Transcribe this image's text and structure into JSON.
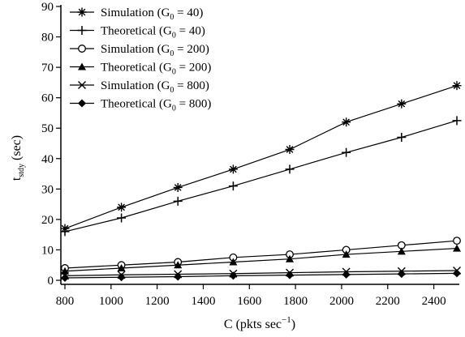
{
  "chart_data": {
    "type": "line",
    "title": "",
    "xlabel": "C (pkts sec",
    "xlabel_sup": "−1",
    "xlabel_close": ")",
    "ylabel": "t",
    "ylabel_sub": "stdy",
    "ylabel_unit": " (sec)",
    "xlim": [
      800,
      2500
    ],
    "ylim": [
      0,
      90
    ],
    "x_ticks": [
      800,
      1000,
      1200,
      1400,
      1600,
      1800,
      2000,
      2200,
      2400
    ],
    "y_ticks": [
      0,
      10,
      20,
      30,
      40,
      50,
      60,
      70,
      80,
      90
    ],
    "x": [
      800,
      1045,
      1290,
      1530,
      1775,
      2020,
      2260,
      2500
    ],
    "grid": false,
    "legend_position": "top-left",
    "series": [
      {
        "name": "Simulation (G",
        "g": "0",
        "eq": " = 40)",
        "marker": "asterisk",
        "values": [
          17,
          24,
          30.5,
          36.5,
          43,
          52,
          58,
          64
        ]
      },
      {
        "name": "Theoretical (G",
        "g": "0",
        "eq": " = 40)",
        "marker": "plus",
        "values": [
          16,
          20.5,
          26,
          31,
          36.5,
          42,
          47,
          52.5
        ]
      },
      {
        "name": "Simulation (G",
        "g": "0",
        "eq": " = 200)",
        "marker": "circle-open",
        "values": [
          4,
          5,
          6,
          7.5,
          8.5,
          10,
          11.5,
          13
        ]
      },
      {
        "name": "Theoretical (G",
        "g": "0",
        "eq": " = 200)",
        "marker": "triangle-filled",
        "values": [
          3,
          4,
          5,
          6,
          7,
          8.5,
          9.5,
          10.5
        ]
      },
      {
        "name": "Simulation (G",
        "g": "0",
        "eq": " = 800)",
        "marker": "cross",
        "values": [
          1.5,
          1.8,
          2,
          2.2,
          2.5,
          2.8,
          3,
          3.2
        ]
      },
      {
        "name": "Theoretical (G",
        "g": "0",
        "eq": " = 800)",
        "marker": "diamond-filled",
        "values": [
          0.8,
          1,
          1.2,
          1.5,
          1.7,
          1.9,
          2.1,
          2.3
        ]
      }
    ]
  }
}
